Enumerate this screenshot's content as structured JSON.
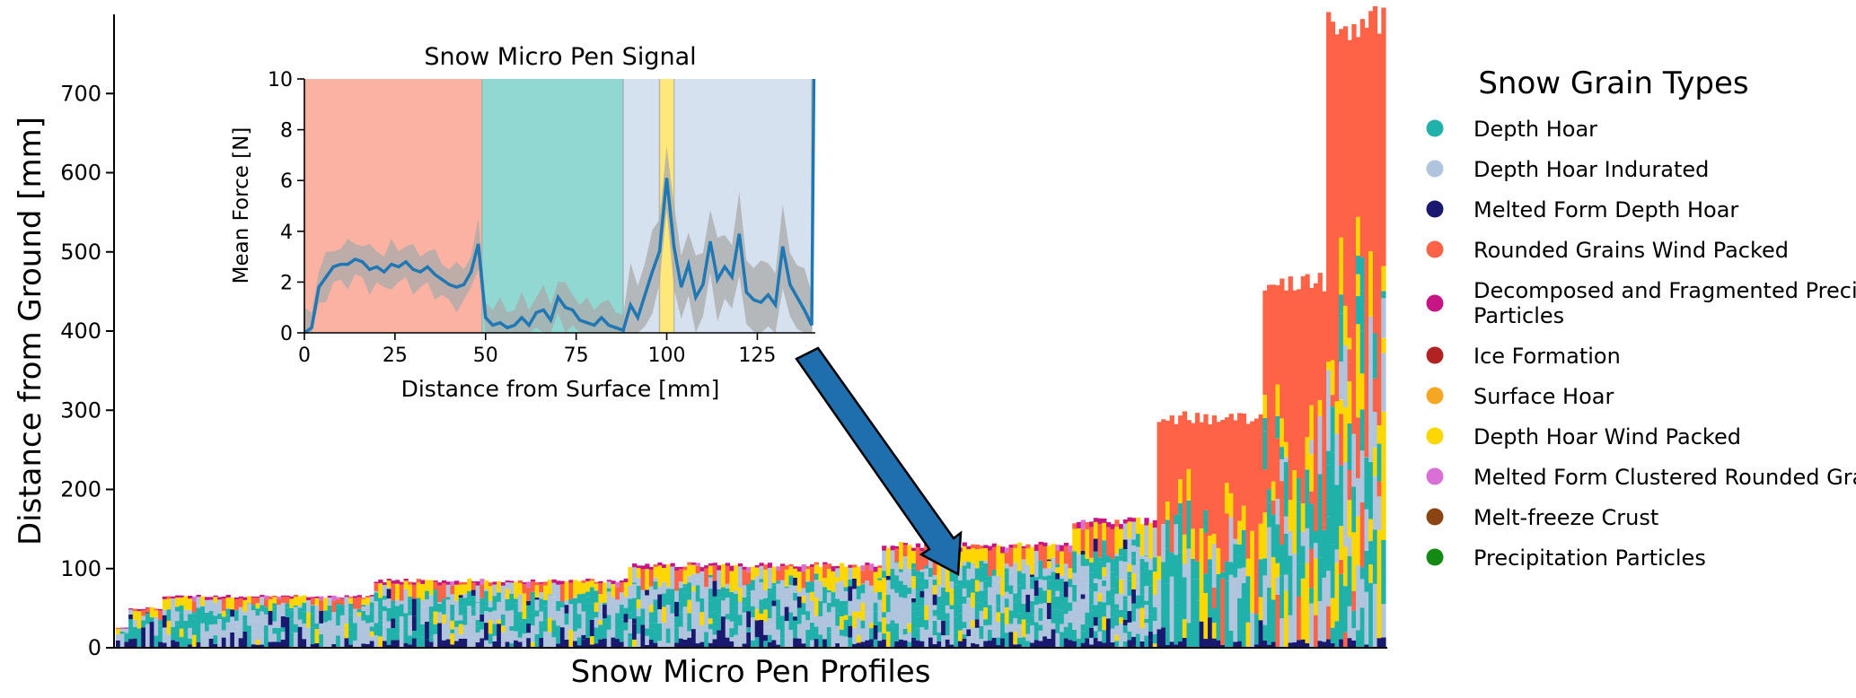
{
  "chart_data": [
    {
      "type": "bar",
      "stacked": true,
      "title": "",
      "xlabel": "Snow Micro Pen Profiles",
      "ylabel": "Distance from Ground [mm]",
      "ylim": [
        0,
        800
      ],
      "yticks": [
        0,
        100,
        200,
        300,
        400,
        500,
        600,
        700
      ],
      "profile_count": 300,
      "profile_heights": [
        {
          "index_range": [
            0,
            2
          ],
          "height_mm": 25
        },
        {
          "index_range": [
            3,
            10
          ],
          "height_mm": 50
        },
        {
          "index_range": [
            10,
            60
          ],
          "height_mm": 65
        },
        {
          "index_range": [
            60,
            120
          ],
          "height_mm": 85
        },
        {
          "index_range": [
            120,
            180
          ],
          "height_mm": 105
        },
        {
          "index_range": [
            180,
            225
          ],
          "height_mm": 130
        },
        {
          "index_range": [
            225,
            245
          ],
          "height_mm": 160
        },
        {
          "index_range": [
            245,
            270
          ],
          "height_mm": 290
        },
        {
          "index_range": [
            270,
            285
          ],
          "height_mm": 460
        },
        {
          "index_range": [
            285,
            299
          ],
          "height_mm": 790
        }
      ],
      "legend_title": "Snow Grain Types",
      "legend_position": "right",
      "series": [
        {
          "name": "Depth Hoar",
          "color": "#20b2aa"
        },
        {
          "name": "Depth Hoar Indurated",
          "color": "#b0c4de"
        },
        {
          "name": "Melted Form Depth Hoar",
          "color": "#191970"
        },
        {
          "name": "Rounded Grains Wind Packed",
          "color": "#ff6347"
        },
        {
          "name": "Decomposed and Fragmented Precipitation Particles",
          "color": "#c71585"
        },
        {
          "name": "Ice Formation",
          "color": "#b22222"
        },
        {
          "name": "Surface Hoar",
          "color": "#f5a623"
        },
        {
          "name": "Depth Hoar Wind Packed",
          "color": "#ffd700"
        },
        {
          "name": "Melted Form Clustered Rounded Grains",
          "color": "#da70d6"
        },
        {
          "name": "Melt-freeze Crust",
          "color": "#8b4513"
        },
        {
          "name": "Precipitation Particles",
          "color": "#138a13"
        }
      ]
    },
    {
      "type": "line",
      "title": "Snow Micro Pen Signal",
      "xlabel": "Distance from Surface [mm]",
      "ylabel": "Mean Force [N]",
      "xlim": [
        0,
        141
      ],
      "ylim": [
        0,
        10
      ],
      "xticks": [
        0,
        25,
        50,
        75,
        100,
        125
      ],
      "yticks": [
        0,
        2,
        4,
        6,
        8,
        10
      ],
      "line_color": "#1f77b4",
      "band_color": "#aaaaaa",
      "background_layers": [
        {
          "x": [
            0,
            49
          ],
          "type": "Rounded Grains Wind Packed",
          "color": "#fbb2a3"
        },
        {
          "x": [
            49,
            88
          ],
          "type": "Depth Hoar",
          "color": "#91d8d2"
        },
        {
          "x": [
            88,
            98
          ],
          "type": "Depth Hoar Indurated",
          "color": "#d5e1ee"
        },
        {
          "x": [
            98,
            102
          ],
          "type": "Depth Hoar Wind Packed",
          "color": "#ffe77a"
        },
        {
          "x": [
            102,
            140
          ],
          "type": "Depth Hoar Indurated",
          "color": "#d5e1ee"
        }
      ],
      "x": [
        0,
        2,
        4,
        6,
        8,
        10,
        12,
        14,
        16,
        18,
        20,
        22,
        24,
        26,
        28,
        30,
        32,
        34,
        36,
        38,
        40,
        42,
        44,
        46,
        48,
        50,
        52,
        54,
        56,
        58,
        60,
        62,
        64,
        66,
        68,
        70,
        72,
        74,
        76,
        78,
        80,
        82,
        84,
        86,
        88,
        90,
        92,
        94,
        96,
        98,
        100,
        102,
        104,
        106,
        108,
        110,
        112,
        114,
        116,
        118,
        120,
        122,
        124,
        126,
        128,
        130,
        132,
        134,
        136,
        138,
        140
      ],
      "y": [
        0.0,
        0.2,
        1.8,
        2.2,
        2.6,
        2.7,
        2.7,
        2.9,
        2.8,
        2.5,
        2.6,
        2.4,
        2.7,
        2.6,
        2.8,
        2.5,
        2.4,
        2.6,
        2.3,
        2.1,
        1.9,
        1.8,
        1.9,
        2.4,
        3.5,
        0.6,
        0.3,
        0.4,
        0.2,
        0.3,
        0.6,
        0.3,
        0.8,
        0.9,
        0.5,
        1.4,
        1.0,
        0.9,
        0.5,
        0.4,
        0.3,
        0.6,
        0.3,
        0.2,
        0.1,
        1.1,
        0.6,
        1.5,
        2.4,
        3.2,
        6.1,
        3.4,
        1.8,
        2.7,
        1.4,
        1.9,
        3.6,
        2.1,
        2.6,
        2.2,
        3.9,
        1.6,
        1.3,
        1.2,
        1.5,
        1.1,
        3.4,
        1.9,
        1.4,
        0.9,
        0.3
      ]
    }
  ]
}
